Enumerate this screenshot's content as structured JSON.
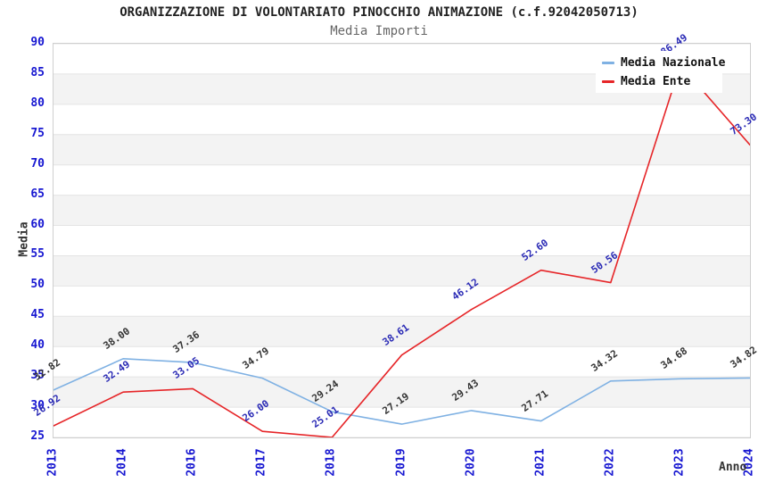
{
  "page": {
    "background": "#ffffff"
  },
  "chart_data": {
    "type": "line",
    "title": "ORGANIZZAZIONE DI VOLONTARIATO PINOCCHIO ANIMAZIONE (c.f.92042050713)",
    "subtitle": "Media Importi",
    "xlabel": "Anno",
    "ylabel": "Media",
    "ylim": [
      25,
      90
    ],
    "ytick_step": 5,
    "yticks": [
      25,
      30,
      35,
      40,
      45,
      50,
      55,
      60,
      65,
      70,
      75,
      80,
      85,
      90
    ],
    "categories": [
      "2013",
      "2014",
      "2016",
      "2017",
      "2018",
      "2019",
      "2020",
      "2021",
      "2022",
      "2023",
      "2024"
    ],
    "series": [
      {
        "name": "Media Nazionale",
        "color": "#7fb1e3",
        "label_color": "#333333",
        "values": [
          32.82,
          38.0,
          37.36,
          34.79,
          29.24,
          27.19,
          29.43,
          27.71,
          34.32,
          34.68,
          34.82
        ]
      },
      {
        "name": "Media Ente",
        "color": "#e62528",
        "label_color": "#2a2ab5",
        "values": [
          26.92,
          32.49,
          33.05,
          26.0,
          25.01,
          38.61,
          46.12,
          52.6,
          50.56,
          86.49,
          73.3
        ]
      }
    ],
    "legend": {
      "position": "top-right",
      "entries": [
        "Media Nazionale",
        "Media Ente"
      ]
    },
    "grid": {
      "horizontal_gridlines": true,
      "alternating_bands": true,
      "band_color": "#f3f3f3",
      "gridline_color": "#e4e4e4"
    },
    "styles": {
      "tick_color": "#1717d1",
      "title_color": "#222222",
      "subtitle_color": "#666666",
      "axis_title_color": "#333333"
    }
  }
}
